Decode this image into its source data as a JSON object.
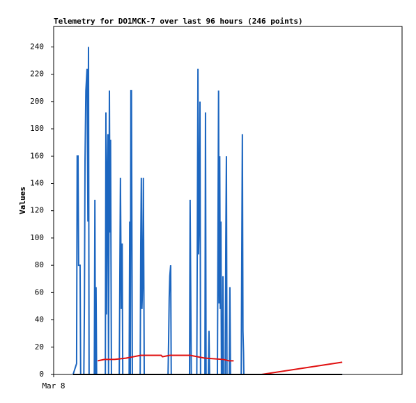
{
  "chart_data": {
    "type": "line",
    "title": "Telemetry for DO1MCK-7 over last 96 hours (246 points)",
    "y_label": "Values",
    "xlim": [
      0,
      120
    ],
    "xticks": [
      {
        "value": 0,
        "label": "Mar 8"
      }
    ],
    "ylim": [
      0,
      255
    ],
    "yticks": [
      0,
      20,
      40,
      60,
      80,
      100,
      120,
      140,
      160,
      180,
      200,
      220,
      240
    ],
    "grid": false,
    "series": [
      {
        "color": "#1c66c0",
        "x": [
          6.7,
          7.9,
          8.1,
          8.4,
          8.6,
          9.1,
          9.3,
          10.4,
          10.6,
          10.8,
          11.1,
          11.3,
          11.5,
          11.8,
          12.0,
          12.2,
          14.0,
          14.2,
          14.4,
          14.6,
          14.8,
          17.8,
          18.0,
          18.2,
          18.5,
          18.7,
          18.9,
          19.2,
          19.4,
          19.6,
          19.9,
          22.6,
          22.8,
          23.0,
          23.3,
          23.6,
          23.8,
          26.0,
          26.2,
          26.4,
          26.6,
          26.8,
          27.1,
          29.8,
          30.0,
          30.2,
          30.4,
          30.7,
          30.9,
          31.2,
          39.4,
          39.6,
          39.8,
          40.0,
          40.3,
          40.5,
          46.8,
          47.0,
          47.2,
          47.4,
          49.3,
          49.5,
          49.7,
          49.9,
          50.1,
          50.4,
          50.6,
          52.1,
          52.3,
          52.5,
          53.3,
          53.5,
          53.7,
          56.4,
          56.6,
          56.8,
          57.0,
          57.2,
          57.4,
          57.6,
          57.8,
          58.1,
          58.3,
          58.5,
          59.1,
          59.3,
          59.5,
          59.7,
          60.5,
          60.7,
          60.9,
          64.6,
          64.8,
          65.0,
          65.2,
          65.4,
          65.5,
          99.4
        ],
        "values": [
          0,
          8,
          160,
          160,
          80,
          80,
          0,
          0,
          52,
          156,
          208,
          216,
          224,
          112,
          240,
          0,
          0,
          128,
          0,
          64,
          0,
          0,
          192,
          44,
          152,
          176,
          0,
          208,
          104,
          172,
          0,
          0,
          72,
          144,
          48,
          96,
          0,
          0,
          112,
          0,
          208,
          208,
          0,
          0,
          96,
          144,
          48,
          72,
          144,
          0,
          0,
          24,
          56,
          72,
          80,
          0,
          0,
          128,
          64,
          0,
          0,
          112,
          224,
          88,
          112,
          200,
          0,
          0,
          192,
          0,
          0,
          32,
          0,
          0,
          104,
          208,
          52,
          160,
          48,
          112,
          0,
          0,
          72,
          0,
          0,
          96,
          160,
          0,
          0,
          64,
          0,
          0,
          88,
          176,
          32,
          16,
          0,
          0
        ]
      },
      {
        "color": "#e01010",
        "x": [
          15.2,
          17.5,
          21.0,
          25.0,
          30.0,
          37.0,
          37.5,
          40.0,
          47.0,
          52.0,
          58.5,
          60.3,
          62.0,
          null,
          71.6,
          99.4
        ],
        "values": [
          10,
          11,
          11,
          12,
          14,
          14,
          13,
          14,
          14,
          12,
          11,
          10,
          10,
          null,
          0,
          9
        ]
      },
      {
        "color": "#000000",
        "x": [
          6.7,
          99.4
        ],
        "values": [
          0,
          0
        ]
      }
    ]
  }
}
